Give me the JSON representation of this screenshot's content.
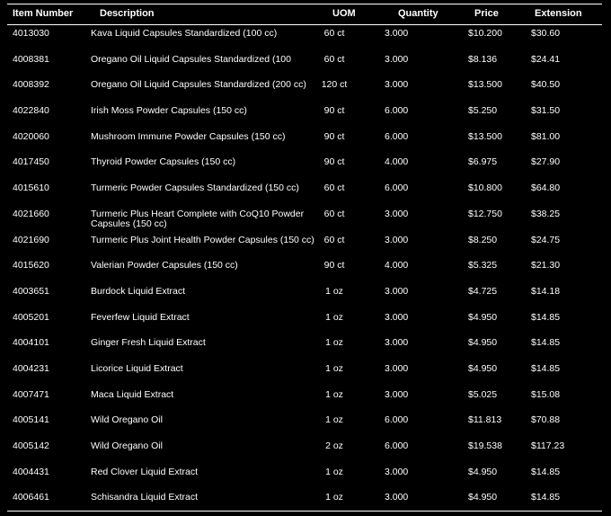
{
  "columns": {
    "item_number": "Item Number",
    "description": "Description",
    "uom": "UOM",
    "quantity": "Quantity",
    "price": "Price",
    "extension": "Extension"
  },
  "rows": [
    {
      "item": "4013030",
      "desc": "Kava Liquid Capsules Standardized (100 cc)",
      "uom": "60 ct",
      "qty": "3.000",
      "price": "$10.200",
      "ext": "$30.60"
    },
    {
      "item": "4008381",
      "desc": "Oregano Oil Liquid Capsules Standardized (100",
      "uom": "60 ct",
      "qty": "3.000",
      "price": "$8.136",
      "ext": "$24.41"
    },
    {
      "item": "4008392",
      "desc": "Oregano Oil Liquid Capsules Standardized (200 cc)",
      "uom": "120 ct",
      "qty": "3.000",
      "price": "$13.500",
      "ext": "$40.50"
    },
    {
      "item": "4022840",
      "desc": "Irish Moss Powder Capsules (150 cc)",
      "uom": "90 ct",
      "qty": "6.000",
      "price": "$5.250",
      "ext": "$31.50"
    },
    {
      "item": "4020060",
      "desc": "Mushroom Immune Powder Capsules (150 cc)",
      "uom": "90 ct",
      "qty": "6.000",
      "price": "$13.500",
      "ext": "$81.00"
    },
    {
      "item": "4017450",
      "desc": "Thyroid Powder Capsules (150 cc)",
      "uom": "90 ct",
      "qty": "4.000",
      "price": "$6.975",
      "ext": "$27.90"
    },
    {
      "item": "4015610",
      "desc": "Turmeric Powder Capsules Standardized (150 cc)",
      "uom": "60 ct",
      "qty": "6.000",
      "price": "$10.800",
      "ext": "$64.80"
    },
    {
      "item": "4021660",
      "desc": "Turmeric Plus Heart Complete with CoQ10 Powder Capsules (150 cc)",
      "uom": "60 ct",
      "qty": "3.000",
      "price": "$12.750",
      "ext": "$38.25"
    },
    {
      "item": "4021690",
      "desc": "Turmeric Plus Joint Health Powder Capsules (150 cc)",
      "uom": "60 ct",
      "qty": "3.000",
      "price": "$8.250",
      "ext": "$24.75"
    },
    {
      "item": "4015620",
      "desc": "Valerian Powder Capsules (150 cc)",
      "uom": "90 ct",
      "qty": "4.000",
      "price": "$5.325",
      "ext": "$21.30"
    },
    {
      "item": "4003651",
      "desc": "Burdock Liquid Extract",
      "uom": "1 oz",
      "qty": "3.000",
      "price": "$4.725",
      "ext": "$14.18"
    },
    {
      "item": "4005201",
      "desc": "Feverfew Liquid Extract",
      "uom": "1 oz",
      "qty": "3.000",
      "price": "$4.950",
      "ext": "$14.85"
    },
    {
      "item": "4004101",
      "desc": "Ginger Fresh Liquid Extract",
      "uom": "1 oz",
      "qty": "3.000",
      "price": "$4.950",
      "ext": "$14.85"
    },
    {
      "item": "4004231",
      "desc": "Licorice Liquid Extract",
      "uom": "1 oz",
      "qty": "3.000",
      "price": "$4.950",
      "ext": "$14.85"
    },
    {
      "item": "4007471",
      "desc": "Maca Liquid Extract",
      "uom": "1 oz",
      "qty": "3.000",
      "price": "$5.025",
      "ext": "$15.08"
    },
    {
      "item": "4005141",
      "desc": "Wild Oregano Oil",
      "uom": "1 oz",
      "qty": "6.000",
      "price": "$11.813",
      "ext": "$70.88"
    },
    {
      "item": "4005142",
      "desc": "Wild Oregano Oil",
      "uom": "2 oz",
      "qty": "6.000",
      "price": "$19.538",
      "ext": "$117.23"
    },
    {
      "item": "4004431",
      "desc": "Red Clover Liquid Extract",
      "uom": "1 oz",
      "qty": "3.000",
      "price": "$4.950",
      "ext": "$14.85"
    },
    {
      "item": "4006461",
      "desc": "Schisandra Liquid Extract",
      "uom": "1 oz",
      "qty": "3.000",
      "price": "$4.950",
      "ext": "$14.85"
    }
  ]
}
